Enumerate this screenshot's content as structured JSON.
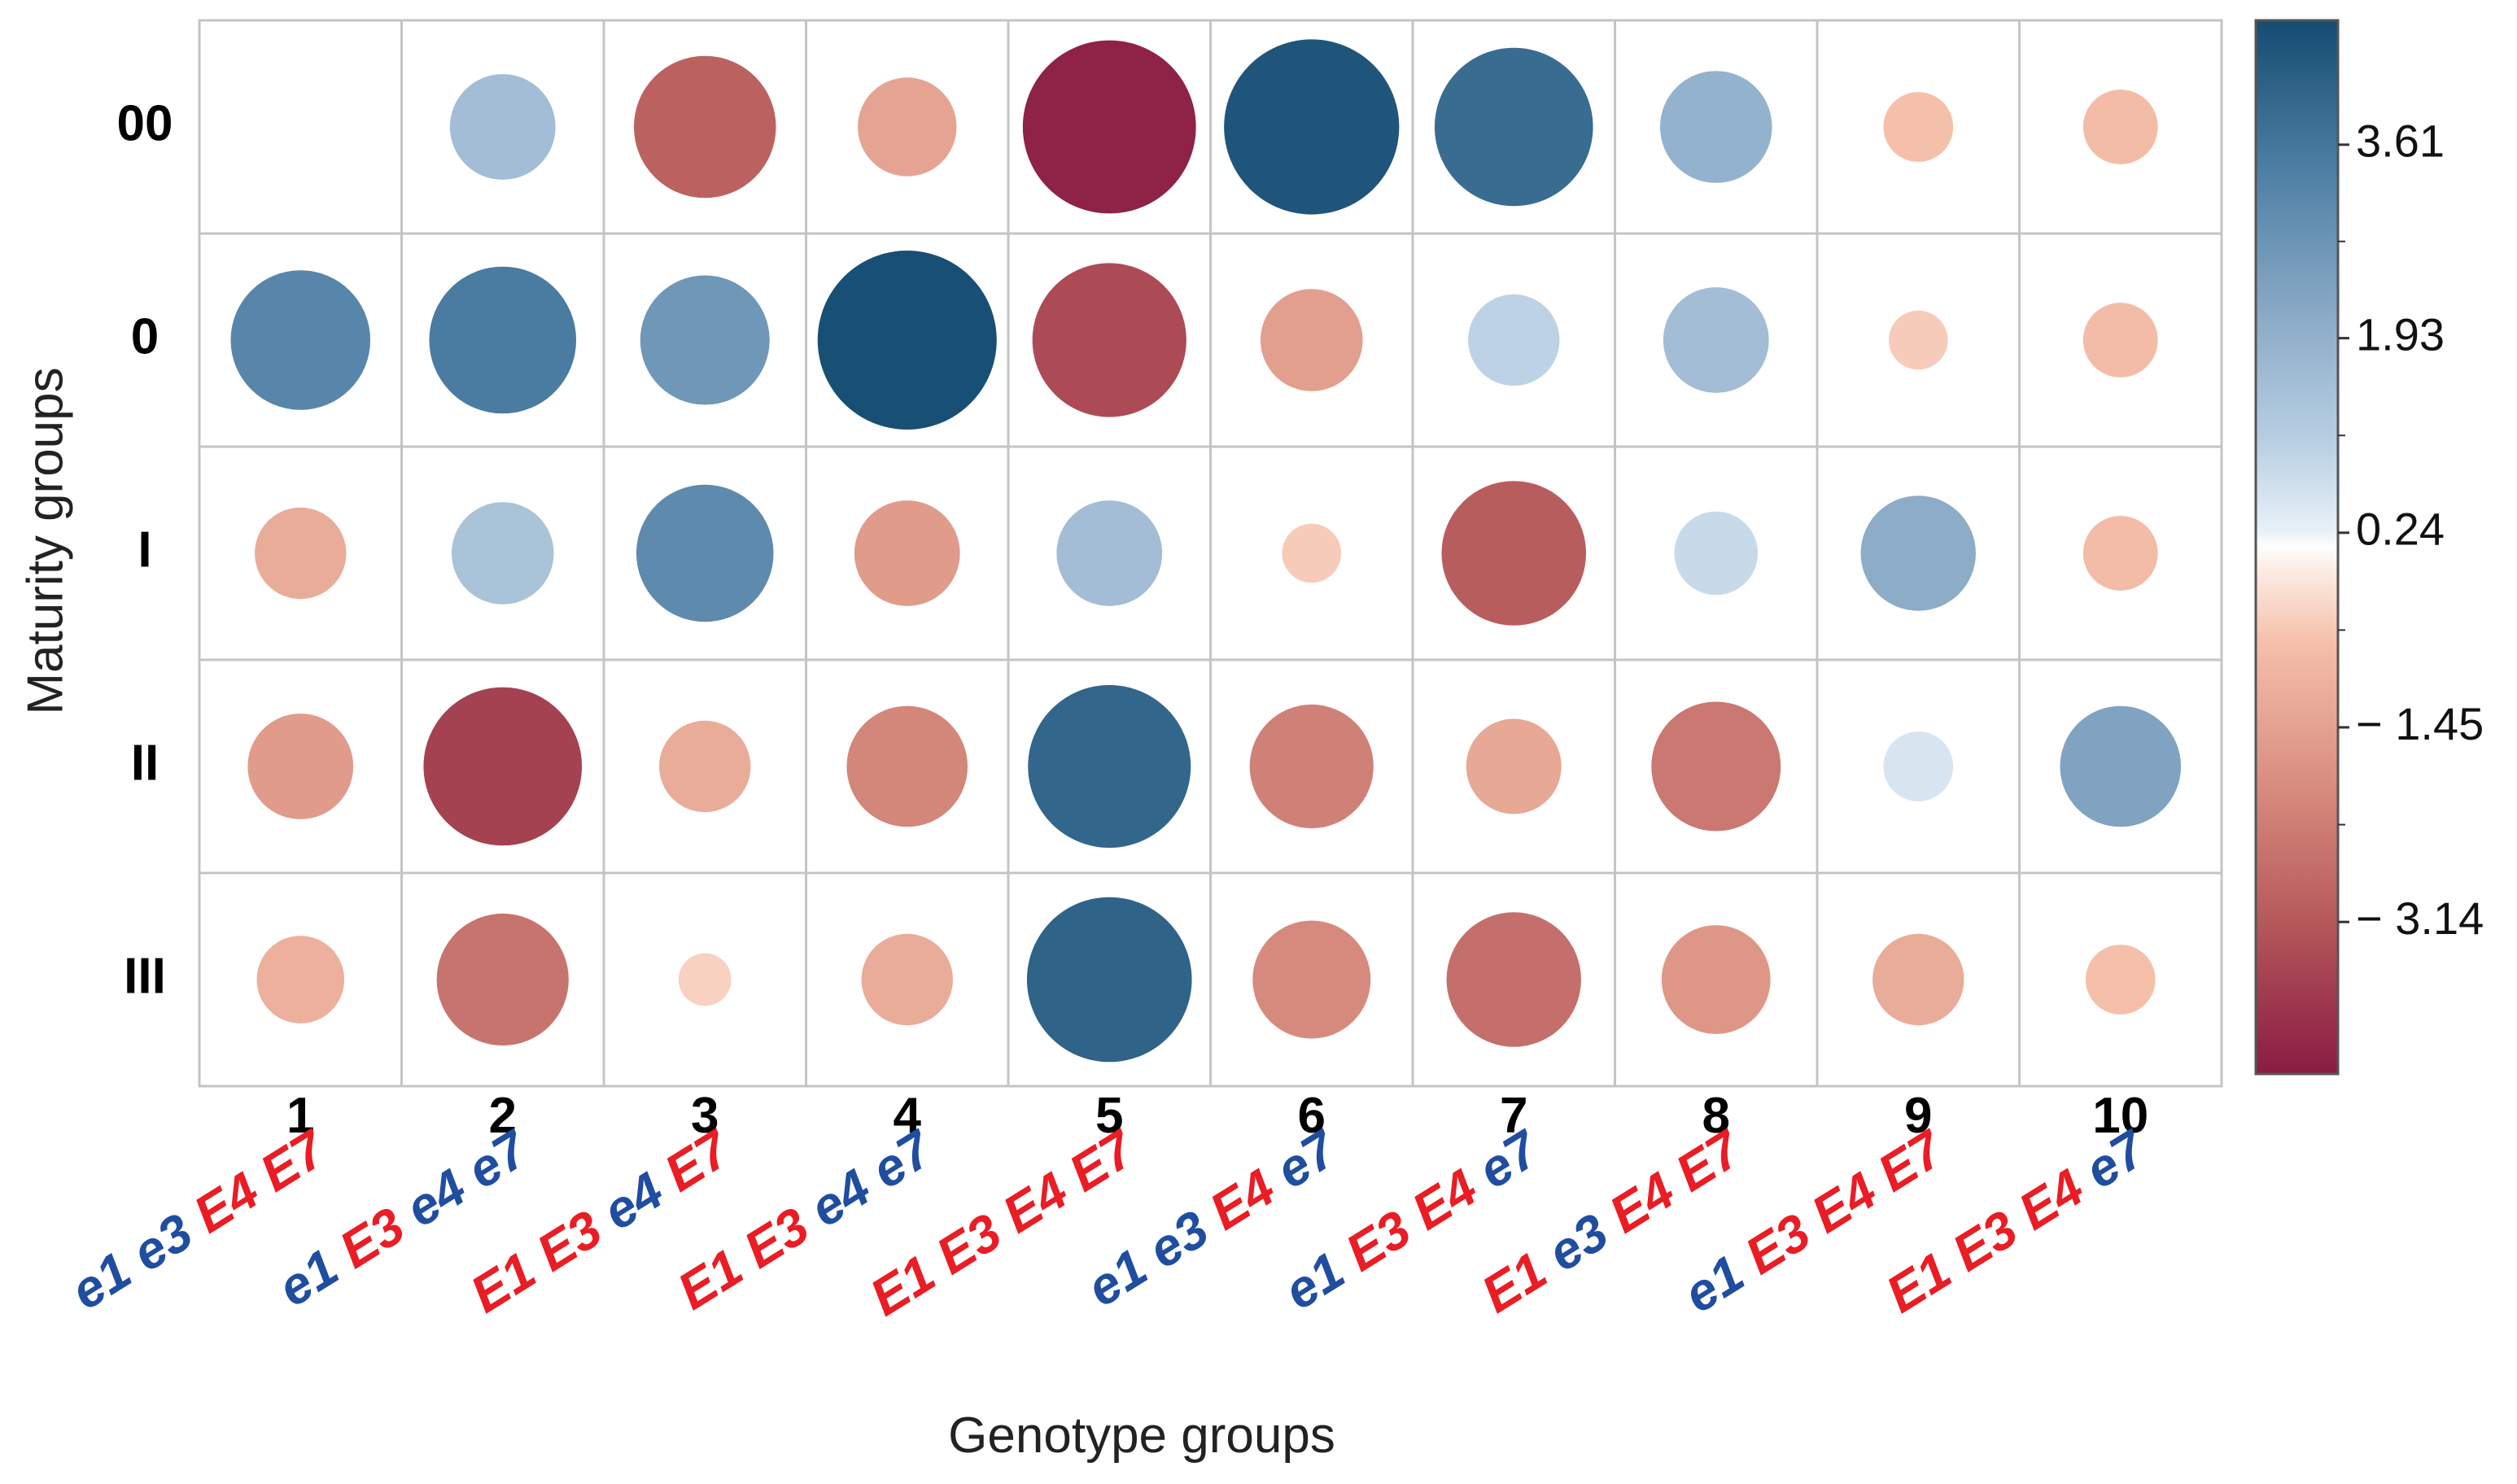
{
  "chart_data": {
    "type": "bubble-heatmap",
    "xlabel": "Genotype groups",
    "ylabel": "Maturity groups",
    "x_categories": [
      "1",
      "2",
      "3",
      "4",
      "5",
      "6",
      "7",
      "8",
      "9",
      "10"
    ],
    "y_categories": [
      "00",
      "0",
      "I",
      "II",
      "III"
    ],
    "genotypes": [
      [
        {
          "t": "e1",
          "c": "recessive"
        },
        {
          "t": "e3",
          "c": "recessive"
        },
        {
          "t": "E4",
          "c": "dominant"
        },
        {
          "t": "E7",
          "c": "dominant"
        }
      ],
      [
        {
          "t": "e1",
          "c": "recessive"
        },
        {
          "t": "E3",
          "c": "dominant"
        },
        {
          "t": "e4",
          "c": "recessive"
        },
        {
          "t": "e7",
          "c": "recessive"
        }
      ],
      [
        {
          "t": "E1",
          "c": "dominant"
        },
        {
          "t": "E3",
          "c": "dominant"
        },
        {
          "t": "e4",
          "c": "recessive"
        },
        {
          "t": "E7",
          "c": "dominant"
        }
      ],
      [
        {
          "t": "E1",
          "c": "dominant"
        },
        {
          "t": "E3",
          "c": "dominant"
        },
        {
          "t": "e4",
          "c": "recessive"
        },
        {
          "t": "e7",
          "c": "recessive"
        }
      ],
      [
        {
          "t": "E1",
          "c": "dominant"
        },
        {
          "t": "E3",
          "c": "dominant"
        },
        {
          "t": "E4",
          "c": "dominant"
        },
        {
          "t": "E7",
          "c": "dominant"
        }
      ],
      [
        {
          "t": "e1",
          "c": "recessive"
        },
        {
          "t": "e3",
          "c": "recessive"
        },
        {
          "t": "E4",
          "c": "dominant"
        },
        {
          "t": "e7",
          "c": "recessive"
        }
      ],
      [
        {
          "t": "e1",
          "c": "recessive"
        },
        {
          "t": "E3",
          "c": "dominant"
        },
        {
          "t": "E4",
          "c": "dominant"
        },
        {
          "t": "e7",
          "c": "recessive"
        }
      ],
      [
        {
          "t": "E1",
          "c": "dominant"
        },
        {
          "t": "e3",
          "c": "recessive"
        },
        {
          "t": "E4",
          "c": "dominant"
        },
        {
          "t": "E7",
          "c": "dominant"
        }
      ],
      [
        {
          "t": "e1",
          "c": "recessive"
        },
        {
          "t": "E3",
          "c": "dominant"
        },
        {
          "t": "E4",
          "c": "dominant"
        },
        {
          "t": "E7",
          "c": "dominant"
        }
      ],
      [
        {
          "t": "E1",
          "c": "dominant"
        },
        {
          "t": "E3",
          "c": "dominant"
        },
        {
          "t": "E4",
          "c": "dominant"
        },
        {
          "t": "e7",
          "c": "recessive"
        }
      ]
    ],
    "values": [
      [
        null,
        1.6,
        -2.9,
        -1.4,
        -4.3,
        4.4,
        3.6,
        1.8,
        -0.7,
        -0.8
      ],
      [
        2.8,
        3.1,
        2.4,
        4.6,
        -3.4,
        -1.5,
        1.2,
        1.6,
        -0.5,
        -0.8
      ],
      [
        -1.2,
        1.5,
        2.7,
        -1.6,
        1.6,
        -0.5,
        -3.0,
        1.0,
        1.9,
        -0.8
      ],
      [
        -1.6,
        -3.6,
        -1.2,
        -2.1,
        3.8,
        -2.2,
        -1.3,
        -2.4,
        0.7,
        2.1
      ],
      [
        -1.1,
        -2.5,
        -0.4,
        -1.2,
        3.9,
        -2.0,
        -2.6,
        -1.7,
        -1.2,
        -0.7
      ]
    ],
    "colorbar": {
      "ticks": [
        3.61,
        1.93,
        0.24,
        -1.45,
        -3.14
      ],
      "tick_labels": [
        "3.61",
        "1.93",
        "0.24",
        "− 1.45",
        "− 3.14"
      ],
      "range": [
        -4.46,
        4.69
      ]
    },
    "colors": {
      "dominant": "#ea1c24",
      "recessive": "#1f4da0",
      "grid": "#c4c4c4",
      "positive_end": "#154c71",
      "negative_end": "#8a1b44"
    }
  }
}
